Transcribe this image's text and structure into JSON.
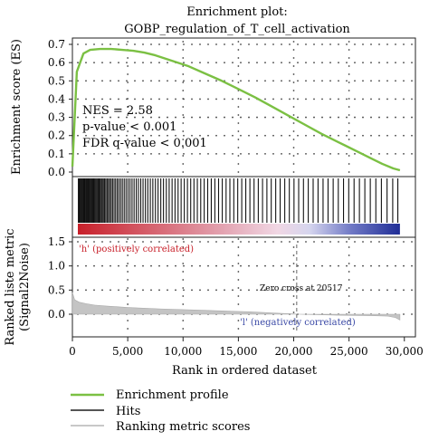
{
  "chart_data": {
    "type": "line",
    "title": "Enrichment plot:",
    "subtitle": "GOBP_regulation_of_T_cell_activation",
    "xlabel": "Rank in ordered dataset",
    "ylabel_es": "Enrichment score (ES)",
    "ylabel_metric_1": "Ranked liste metric",
    "ylabel_metric_2": "(Signal2Noise)",
    "x_ticks": [
      0,
      5000,
      10000,
      15000,
      20000,
      25000,
      30000
    ],
    "x_tick_labels": [
      "0",
      "5,000",
      "10,000",
      "15,000",
      "20,000",
      "25,000",
      "30,000"
    ],
    "xlim": [
      0,
      31000
    ],
    "es_ylim": [
      0,
      0.72
    ],
    "es_ticks": [
      0.0,
      0.1,
      0.2,
      0.3,
      0.4,
      0.5,
      0.6,
      0.7
    ],
    "es_tick_labels": [
      "0.0",
      "0.1",
      "0.2",
      "0.3",
      "0.4",
      "0.5",
      "0.6",
      "0.7"
    ],
    "metric_ylim": [
      -0.15,
      1.6
    ],
    "metric_ticks": [
      0.0,
      0.5,
      1.0,
      1.5
    ],
    "metric_tick_labels": [
      "0.0",
      "0.5",
      "1.0",
      "1.5"
    ],
    "grid": true,
    "es_curve": {
      "x": [
        0,
        400,
        1000,
        1600,
        2500,
        3500,
        4500,
        5500,
        6500,
        7500,
        9000,
        10500,
        12000,
        13500,
        15000,
        16500,
        18000,
        19500,
        21000,
        22500,
        24000,
        25500,
        27000,
        28000,
        29000,
        29600
      ],
      "y": [
        0.03,
        0.55,
        0.65,
        0.67,
        0.675,
        0.675,
        0.67,
        0.665,
        0.655,
        0.64,
        0.61,
        0.58,
        0.54,
        0.5,
        0.455,
        0.41,
        0.36,
        0.31,
        0.26,
        0.21,
        0.165,
        0.12,
        0.075,
        0.045,
        0.02,
        0.01
      ]
    },
    "metric_curve": {
      "x": [
        0,
        200,
        600,
        1200,
        2000,
        3000,
        5000,
        8000,
        12000,
        16000,
        20517,
        24000,
        27000,
        28500,
        29200,
        29600
      ],
      "y": [
        0.45,
        0.3,
        0.25,
        0.22,
        0.19,
        0.17,
        0.14,
        0.11,
        0.08,
        0.05,
        0.0,
        -0.02,
        -0.03,
        -0.04,
        -0.07,
        -0.12
      ]
    },
    "zero_cross_x": 20517,
    "hits_positions": [
      50,
      120,
      200,
      280,
      360,
      430,
      510,
      580,
      650,
      730,
      800,
      880,
      950,
      1030,
      1100,
      1180,
      1260,
      1340,
      1420,
      1500,
      1590,
      1680,
      1770,
      1860,
      1950,
      2050,
      2150,
      2250,
      2350,
      2460,
      2570,
      2690,
      2810,
      2930,
      3060,
      3190,
      3330,
      3470,
      3620,
      3770,
      3930,
      4090,
      4260,
      4430,
      4610,
      4790,
      4980,
      5170,
      5370,
      5570,
      5780,
      5990,
      6210,
      6430,
      6660,
      6890,
      7130,
      7370,
      7620,
      7870,
      8130,
      8390,
      8660,
      8930,
      9210,
      9490,
      9780,
      10070,
      10370,
      10670,
      10980,
      11290,
      11610,
      11930,
      12260,
      12590,
      12930,
      13270,
      13620,
      13970,
      14330,
      14690,
      15060,
      15430,
      15810,
      16190,
      16580,
      16970,
      17370,
      17770,
      18180,
      18590,
      19010,
      19430,
      19860,
      20290,
      20730,
      21170,
      21620,
      22070,
      22530,
      22990,
      23460,
      23930,
      24410,
      24890,
      25380,
      25870,
      26370,
      26870,
      27380,
      27890,
      28410,
      28930,
      29400
    ],
    "annotations": {
      "nes": "NES = 2.58",
      "p_value": "p-value < 0.001",
      "fdr": "FDR q-value < 0.001",
      "pos_label": "'h' (positively correlated)",
      "neg_label": "'l' (negatively correlated)",
      "zero_cross": "Zero cross at 20517"
    },
    "legend": [
      {
        "label": "Enrichment profile",
        "color": "#7bc043"
      },
      {
        "label": "Hits",
        "color": "#555555"
      },
      {
        "label": "Ranking metric scores",
        "color": "#c8c8c8"
      }
    ],
    "colors": {
      "es_line": "#7bc043",
      "metric_fill": "#c4c4c4",
      "hit": "#111111",
      "heat_pos": "#c8202a",
      "heat_mid": "#f1d7e4",
      "heat_neg": "#1f2d96",
      "grid": "#444444",
      "zero_cross": "#666666",
      "pos_label": "#c8202a",
      "neg_label": "#3a49a6"
    }
  }
}
